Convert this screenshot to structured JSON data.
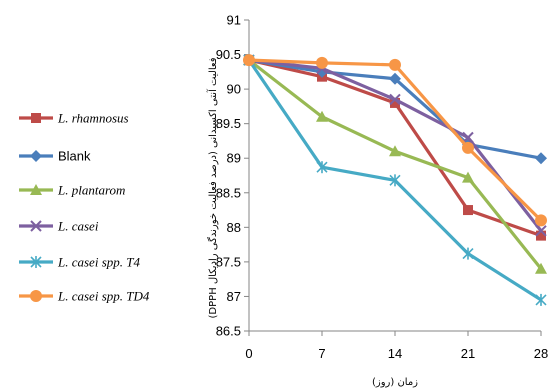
{
  "chart_data": {
    "type": "line",
    "xlabel": "زمان (روز)",
    "ylabel": "فعالیت آنتی اکسیدانی (درصد فعالیت خورندگی رادیکال DPPH)",
    "x": [
      0,
      7,
      14,
      21,
      28
    ],
    "ylim": [
      86.5,
      91
    ],
    "yticks": [
      86.5,
      87,
      87.5,
      88,
      88.5,
      89,
      89.5,
      90,
      90.5,
      91
    ],
    "grid": false,
    "legend_position": "left",
    "series": [
      {
        "name": "L. rhamnosus",
        "color": "#be4b48",
        "marker": "square",
        "italic": true,
        "values": [
          90.42,
          90.18,
          89.8,
          88.25,
          87.88
        ]
      },
      {
        "name": "Blank",
        "color": "#4a7ebb",
        "marker": "diamond",
        "italic": false,
        "values": [
          90.42,
          90.25,
          90.15,
          89.2,
          89.0
        ]
      },
      {
        "name": "L. plantarom",
        "color": "#98b954",
        "marker": "triangle",
        "italic": true,
        "values": [
          90.42,
          89.6,
          89.1,
          88.72,
          87.4
        ]
      },
      {
        "name": "L. casei",
        "color": "#7d60a0",
        "marker": "x",
        "italic": true,
        "values": [
          90.42,
          90.3,
          89.85,
          89.3,
          87.95
        ]
      },
      {
        "name": "L. casei spp. T4",
        "color": "#46aac5",
        "marker": "star",
        "italic": true,
        "values": [
          90.42,
          88.87,
          88.68,
          87.62,
          86.95
        ]
      },
      {
        "name": "L. casei spp. TD4",
        "color": "#f79646",
        "marker": "circle",
        "italic": true,
        "values": [
          90.42,
          90.38,
          90.35,
          89.15,
          88.1
        ]
      }
    ]
  }
}
